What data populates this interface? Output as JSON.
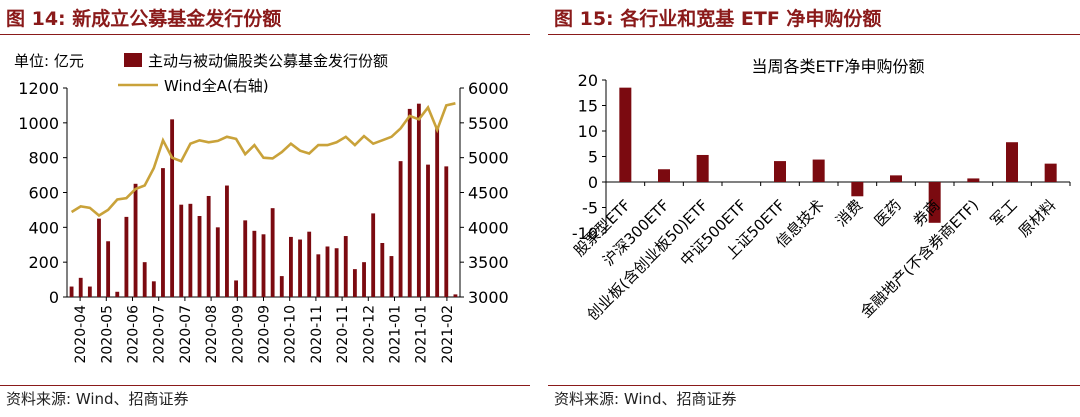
{
  "left": {
    "figure_title": "图 14:  新成立公募基金发行份额",
    "source": "资料来源:  Wind、招商证券"
  },
  "right": {
    "figure_title": "图 15:  各行业和宽基 ETF 净申购份额",
    "source": "资料来源:  Wind、招商证券"
  },
  "colors": {
    "bar": "#7b0a10",
    "line": "#c9a23a",
    "title": "#8a1a1a"
  },
  "chart_data": [
    {
      "type": "bar",
      "title": "",
      "unit_label": "单位:  亿元",
      "x_tick_labels": [
        "2020-04",
        "2020-05",
        "2020-06",
        "2020-07",
        "2020-07",
        "2020-08",
        "2020-09",
        "2020-09",
        "2020-10",
        "2020-11",
        "2020-11",
        "2020-12",
        "2021-01",
        "2021-01",
        "2021-02"
      ],
      "ylim": [
        0,
        1200
      ],
      "y_ticks": [
        0,
        200,
        400,
        600,
        800,
        1000,
        1200
      ],
      "y2lim": [
        3000,
        6000
      ],
      "y2_ticks": [
        3000,
        3500,
        4000,
        4500,
        5000,
        5500,
        6000
      ],
      "legend_position": "top",
      "series": [
        {
          "name": "主动与被动偏股类公募基金发行份额",
          "type": "bar",
          "axis": "left",
          "values": [
            60,
            110,
            60,
            450,
            320,
            30,
            460,
            650,
            200,
            90,
            740,
            1020,
            530,
            535,
            465,
            580,
            400,
            640,
            95,
            440,
            380,
            360,
            510,
            120,
            345,
            330,
            375,
            245,
            290,
            280,
            350,
            160,
            200,
            480,
            310,
            235,
            780,
            1080,
            1110,
            760,
            980,
            750,
            15
          ]
        },
        {
          "name": "Wind全A(右轴)",
          "type": "line",
          "axis": "right",
          "values": [
            4220,
            4300,
            4280,
            4170,
            4250,
            4400,
            4420,
            4550,
            4600,
            4850,
            5250,
            5000,
            4950,
            5200,
            5250,
            5220,
            5240,
            5300,
            5270,
            5050,
            5180,
            5000,
            4990,
            5080,
            5200,
            5100,
            5060,
            5180,
            5180,
            5220,
            5300,
            5180,
            5310,
            5200,
            5250,
            5300,
            5420,
            5600,
            5550,
            5720,
            5400,
            5750,
            5780
          ]
        }
      ]
    },
    {
      "type": "bar",
      "title": "当周各类ETF净申购份额",
      "categories": [
        "股票型ETF",
        "沪深300ETF",
        "创业板(含创业板50)ETF",
        "中证500ETF",
        "上证50ETF",
        "信息技术",
        "消费",
        "医药",
        "券商",
        "金融地产(不含券商ETF)",
        "军工",
        "原材料"
      ],
      "values": [
        18.5,
        2.5,
        5.3,
        0.0,
        4.1,
        4.4,
        -2.8,
        1.3,
        -8.0,
        0.7,
        7.8,
        3.6
      ],
      "ylim": [
        -10,
        20
      ],
      "y_ticks": [
        -10,
        -5,
        0,
        5,
        10,
        15,
        20
      ],
      "xlabel": "",
      "ylabel": ""
    }
  ]
}
